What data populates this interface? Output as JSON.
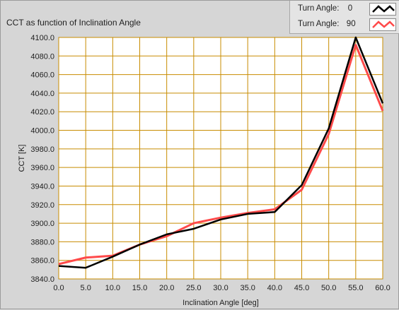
{
  "chart_data": {
    "type": "line",
    "title": "CCT as function of Inclination Angle",
    "xlabel": "Inclination Angle [deg]",
    "ylabel": "CCT [K]",
    "xlim": [
      0,
      60
    ],
    "ylim": [
      3840,
      4100
    ],
    "grid": true,
    "legend_position": "top-right",
    "x_ticks": [
      "0.0",
      "5.0",
      "10.0",
      "15.0",
      "20.0",
      "25.0",
      "30.0",
      "35.0",
      "40.0",
      "45.0",
      "50.0",
      "55.0",
      "60.0"
    ],
    "y_ticks": [
      "3840.0",
      "3860.0",
      "3880.0",
      "3900.0",
      "3920.0",
      "3940.0",
      "3960.0",
      "3980.0",
      "4000.0",
      "4020.0",
      "4040.0",
      "4060.0",
      "4080.0",
      "4100.0"
    ],
    "x": [
      0,
      5,
      10,
      15,
      20,
      25,
      30,
      35,
      40,
      45,
      50,
      55,
      60
    ],
    "series": [
      {
        "legend_label": "Turn Angle:",
        "legend_value": "0",
        "color": "#000000",
        "values": [
          3854,
          3852,
          3864,
          3877,
          3888,
          3894,
          3904,
          3910,
          3912,
          3941,
          4002,
          4100,
          4029
        ]
      },
      {
        "legend_label": "Turn Angle:",
        "legend_value": "90",
        "color": "#ff4a4a",
        "values": [
          3856,
          3863,
          3865,
          3877,
          3886,
          3900,
          3906,
          3911,
          3915,
          3936,
          3996,
          4092,
          4021
        ]
      }
    ]
  },
  "colors": {
    "plot_background": "#ffffff",
    "grid": "#c88c00",
    "panel": "#d6d6d6"
  }
}
